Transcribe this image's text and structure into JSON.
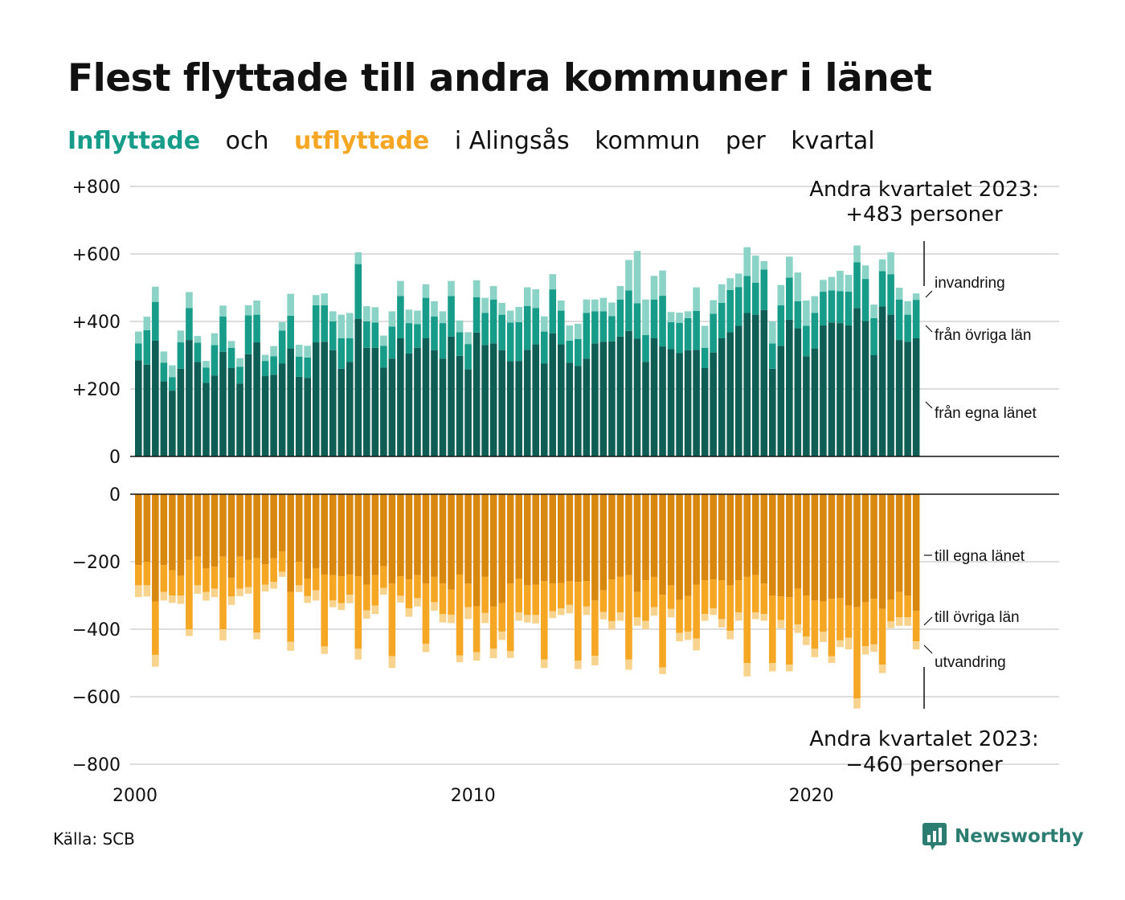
{
  "title": "Flest flyttade till andra kommuner i länet",
  "subtitle": {
    "in_word": "Inflyttade",
    "and_word": "och",
    "out_word": "utflyttade",
    "rest": [
      "i Alingsås",
      "kommun",
      "per",
      "kvartal"
    ]
  },
  "source": "Källa: SCB",
  "logo": {
    "icon": "newsworthy-chart-icon",
    "text": "Newsworthy"
  },
  "colors": {
    "in_own": "#0f5e55",
    "in_other": "#179c8a",
    "in_immig": "#8ad3c6",
    "out_own": "#d9880f",
    "out_other": "#f5a623",
    "out_emig": "#f8d38d",
    "grid": "#dddddd"
  },
  "chart_data": {
    "type": "bar",
    "stacked": true,
    "x_start": "2000 Q1",
    "x_ticks": [
      "2000",
      "2010",
      "2020"
    ],
    "top_panel": {
      "y_ticks": [
        "+800",
        "+600",
        "+400",
        "+200",
        "0"
      ],
      "ylim": [
        0,
        800
      ],
      "series_names": [
        "från egna länet",
        "från övriga län",
        "invandring"
      ],
      "own": [
        285,
        272,
        343,
        223,
        195,
        260,
        345,
        280,
        218,
        240,
        310,
        262,
        216,
        303,
        338,
        238,
        242,
        275,
        320,
        236,
        233,
        338,
        340,
        315,
        260,
        280,
        408,
        322,
        322,
        263,
        290,
        350,
        305,
        322,
        350,
        315,
        290,
        355,
        298,
        258,
        367,
        330,
        335,
        315,
        282,
        283,
        316,
        332,
        275,
        365,
        332,
        278,
        268,
        290,
        335,
        340,
        341,
        355,
        372,
        349,
        280,
        350,
        326,
        318,
        306,
        315,
        316,
        262,
        308,
        350,
        368,
        387,
        425,
        420,
        434,
        260,
        328,
        405,
        380,
        297,
        320,
        388,
        397,
        395,
        388,
        440,
        401,
        300,
        444,
        420,
        345,
        340,
        350
      ],
      "other": [
        50,
        102,
        115,
        55,
        40,
        78,
        95,
        57,
        45,
        90,
        105,
        60,
        50,
        115,
        82,
        45,
        55,
        98,
        97,
        60,
        60,
        110,
        108,
        85,
        90,
        70,
        162,
        78,
        75,
        65,
        95,
        125,
        90,
        70,
        120,
        100,
        105,
        120,
        70,
        75,
        105,
        95,
        130,
        105,
        115,
        115,
        130,
        108,
        95,
        130,
        100,
        65,
        80,
        135,
        95,
        90,
        75,
        110,
        120,
        105,
        80,
        115,
        150,
        80,
        90,
        95,
        115,
        60,
        115,
        105,
        125,
        115,
        110,
        95,
        120,
        75,
        120,
        125,
        80,
        90,
        105,
        100,
        95,
        95,
        100,
        135,
        125,
        110,
        105,
        120,
        120,
        80,
        114
      ],
      "immig": [
        35,
        40,
        45,
        33,
        35,
        35,
        47,
        20,
        20,
        35,
        32,
        20,
        25,
        30,
        42,
        18,
        30,
        25,
        65,
        35,
        35,
        30,
        35,
        30,
        70,
        75,
        35,
        45,
        45,
        30,
        45,
        45,
        40,
        40,
        40,
        45,
        35,
        45,
        35,
        35,
        50,
        45,
        40,
        35,
        35,
        45,
        55,
        55,
        45,
        45,
        30,
        45,
        45,
        40,
        35,
        40,
        40,
        40,
        90,
        155,
        105,
        70,
        75,
        30,
        30,
        20,
        70,
        65,
        40,
        55,
        35,
        40,
        85,
        80,
        25,
        65,
        60,
        62,
        85,
        75,
        50,
        35,
        40,
        60,
        50,
        50,
        40,
        40,
        35,
        65,
        35,
        40,
        19
      ]
    },
    "bottom_panel": {
      "y_ticks": [
        "0",
        "−200",
        "−400",
        "−600",
        "−800"
      ],
      "ylim": [
        -800,
        0
      ],
      "series_names": [
        "till egna länet",
        "till övriga län",
        "utvandring"
      ],
      "own": [
        210,
        200,
        318,
        210,
        225,
        242,
        195,
        185,
        220,
        215,
        185,
        248,
        185,
        195,
        190,
        208,
        190,
        170,
        290,
        200,
        250,
        220,
        238,
        240,
        243,
        238,
        243,
        268,
        240,
        213,
        265,
        243,
        253,
        240,
        265,
        245,
        265,
        283,
        238,
        265,
        332,
        245,
        333,
        323,
        265,
        250,
        270,
        268,
        258,
        265,
        263,
        258,
        260,
        258,
        315,
        285,
        253,
        245,
        240,
        290,
        255,
        245,
        298,
        270,
        313,
        302,
        268,
        255,
        253,
        255,
        270,
        255,
        245,
        240,
        265,
        300,
        303,
        305,
        280,
        300,
        315,
        318,
        310,
        308,
        330,
        335,
        320,
        310,
        340,
        312,
        290,
        300,
        346
      ],
      "other": [
        60,
        70,
        158,
        80,
        75,
        58,
        205,
        85,
        70,
        65,
        215,
        55,
        95,
        80,
        220,
        60,
        70,
        60,
        147,
        70,
        52,
        65,
        213,
        75,
        80,
        60,
        215,
        76,
        90,
        65,
        215,
        58,
        85,
        68,
        178,
        75,
        90,
        74,
        240,
        70,
        136,
        107,
        125,
        84,
        200,
        100,
        88,
        90,
        232,
        82,
        75,
        70,
        233,
        75,
        164,
        64,
        123,
        105,
        250,
        75,
        120,
        90,
        215,
        70,
        98,
        105,
        160,
        100,
        85,
        115,
        135,
        95,
        255,
        110,
        90,
        200,
        70,
        200,
        106,
        122,
        143,
        90,
        170,
        125,
        95,
        270,
        130,
        135,
        165,
        65,
        75,
        65,
        90
      ],
      "emig": [
        35,
        33,
        35,
        25,
        22,
        25,
        20,
        25,
        25,
        25,
        33,
        25,
        22,
        20,
        20,
        20,
        20,
        15,
        27,
        20,
        20,
        30,
        22,
        20,
        20,
        25,
        32,
        25,
        25,
        20,
        35,
        20,
        25,
        25,
        25,
        25,
        25,
        25,
        20,
        35,
        25,
        30,
        28,
        25,
        20,
        25,
        22,
        25,
        25,
        20,
        20,
        25,
        25,
        25,
        28,
        22,
        25,
        25,
        30,
        25,
        25,
        25,
        20,
        25,
        25,
        25,
        35,
        20,
        20,
        25,
        25,
        25,
        40,
        20,
        20,
        25,
        25,
        20,
        25,
        25,
        25,
        30,
        20,
        20,
        35,
        30,
        25,
        22,
        25,
        20,
        25,
        25,
        24
      ]
    },
    "annotations": {
      "top_label": [
        "Andra kvartalet 2023:",
        "+483 personer"
      ],
      "top_total": 483,
      "bottom_label": [
        "Andra kvartalet 2023:",
        "−460 personer"
      ],
      "bottom_total": -460
    },
    "legend": "direct labels at right",
    "grid": true
  }
}
